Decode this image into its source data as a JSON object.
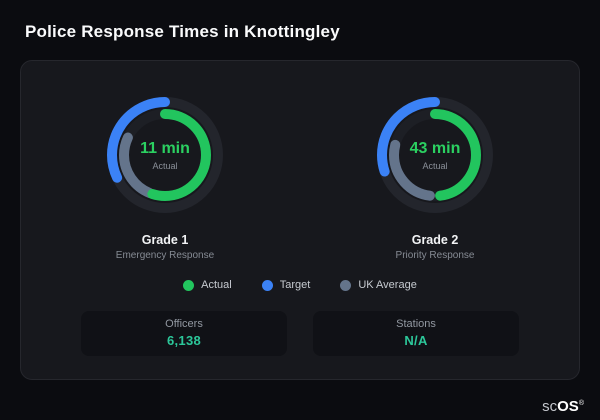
{
  "title": "Police Response Times in Knottingley",
  "colors": {
    "actual": "#22c55e",
    "target": "#3b82f6",
    "uk_average": "#64748b",
    "gauge_value": "#2bd061",
    "stat_value": "#2cc79a"
  },
  "chart_data": {
    "type": "donut",
    "title": "Police Response Times in Knottingley",
    "legend": [
      "Actual",
      "Target",
      "UK Average"
    ],
    "legend_position": "bottom",
    "charts": [
      {
        "label": "Grade 1",
        "sublabel": "Emergency Response",
        "center_value": "11 min",
        "center_label": "Actual",
        "rings": [
          "Target (blue, outer)",
          "Actual (green) vs UK Average (gray, inner)"
        ]
      },
      {
        "label": "Grade 2",
        "sublabel": "Priority Response",
        "center_value": "43 min",
        "center_label": "Actual",
        "rings": [
          "Target (blue, outer)",
          "Actual (green) vs UK Average (gray, inner)"
        ]
      }
    ],
    "stats": [
      {
        "label": "Officers",
        "value": "6,138"
      },
      {
        "label": "Stations",
        "value": "N/A"
      }
    ]
  },
  "gauges": [
    {
      "center_value": "11 min",
      "center_label": "Actual",
      "title": "Grade 1",
      "subtitle": "Emergency Response",
      "rings": [
        {
          "radius": 53,
          "width": 10,
          "track": "#23252c",
          "segments": [
            {
              "color": "#3b82f6",
              "frac": 0.84,
              "start": 0.68
            }
          ]
        },
        {
          "radius": 41,
          "width": 10,
          "track": "#1d1f25",
          "segments": [
            {
              "color": "#64748b",
              "frac": 0.26,
              "start": 0.56
            },
            {
              "color": "#22c55e",
              "frac": 0.55,
              "start": 0.0
            }
          ]
        }
      ]
    },
    {
      "center_value": "43 min",
      "center_label": "Actual",
      "title": "Grade 2",
      "subtitle": "Priority Response",
      "rings": [
        {
          "radius": 53,
          "width": 10,
          "track": "#23252c",
          "segments": [
            {
              "color": "#3b82f6",
              "frac": 0.8,
              "start": 0.7
            }
          ]
        },
        {
          "radius": 41,
          "width": 10,
          "track": "#1d1f25",
          "segments": [
            {
              "color": "#64748b",
              "frac": 0.27,
              "start": 0.52
            },
            {
              "color": "#22c55e",
              "frac": 0.48,
              "start": 0.0
            }
          ]
        }
      ]
    }
  ],
  "legend": [
    {
      "label": "Actual",
      "color": "#22c55e"
    },
    {
      "label": "Target",
      "color": "#3b82f6"
    },
    {
      "label": "UK Average",
      "color": "#64748b"
    }
  ],
  "stats": [
    {
      "label": "Officers",
      "value": "6,138"
    },
    {
      "label": "Stations",
      "value": "N/A"
    }
  ],
  "logo": {
    "prefix": "sc",
    "suffix": "OS",
    "reg": "®"
  }
}
